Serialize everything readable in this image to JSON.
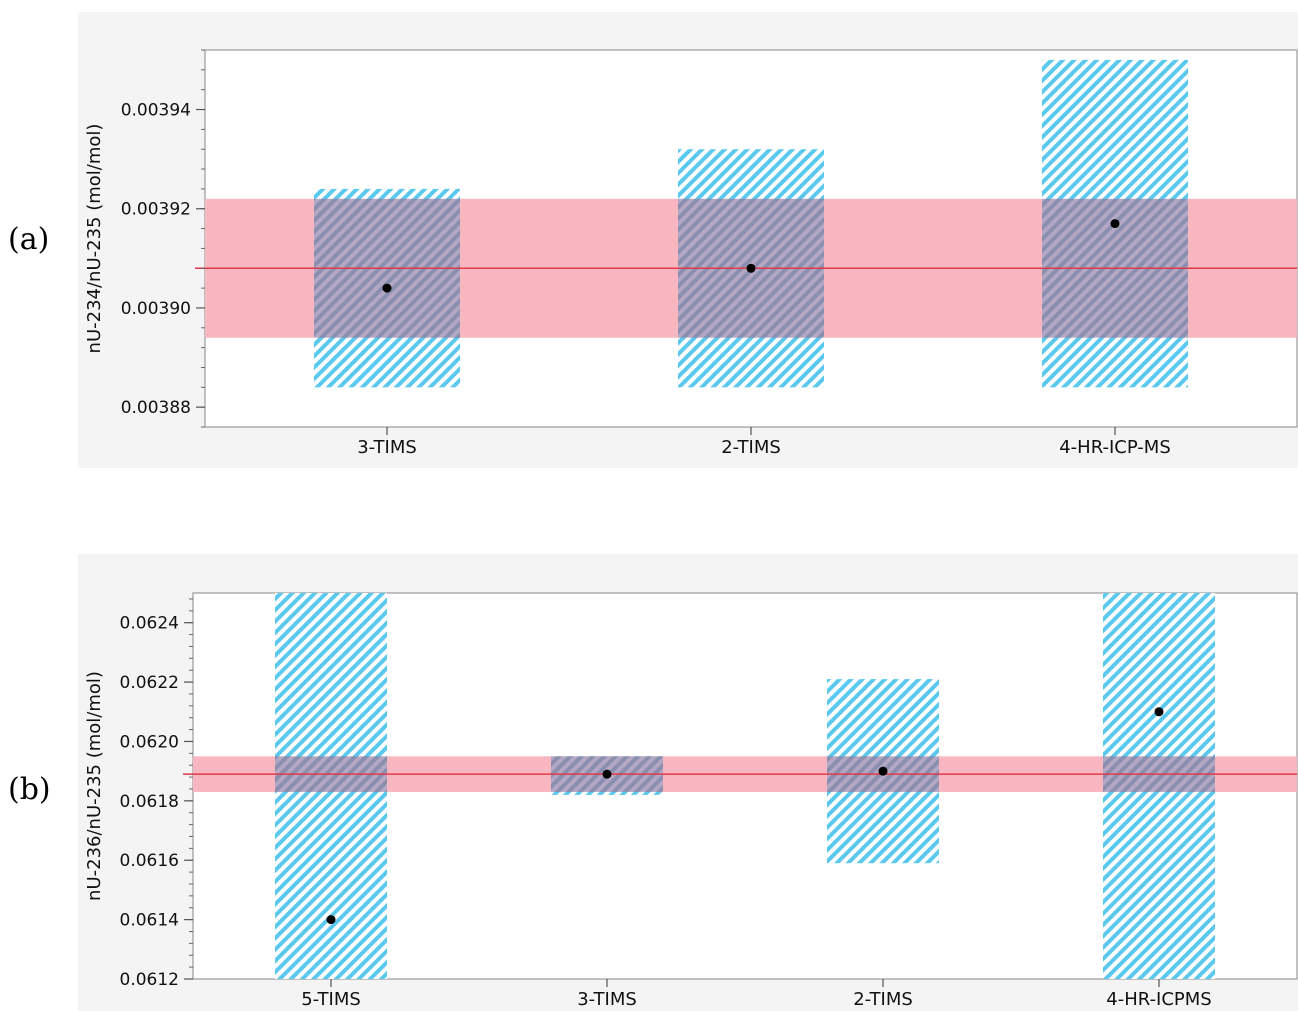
{
  "panel_labels": {
    "a": "(a)",
    "b": "(b)"
  },
  "chart_data": [
    {
      "id": "a",
      "type": "scatter",
      "ylabel": "nU-234/nU-235 (mol/mol)",
      "ylim": [
        0.003876,
        0.003952
      ],
      "yticks": [
        "0.00388",
        "0.00390",
        "0.00392",
        "0.00394"
      ],
      "ytick_values": [
        0.00388,
        0.0039,
        0.00392,
        0.00394
      ],
      "categories": [
        "3-TIMS",
        "2-TIMS",
        "4-HR-ICP-MS"
      ],
      "values": [
        0.003904,
        0.003908,
        0.003917
      ],
      "uncertainty_boxes": [
        [
          0.003884,
          0.003924
        ],
        [
          0.003884,
          0.003932
        ],
        [
          0.003884,
          0.00395
        ]
      ],
      "reference_value": 0.003908,
      "reference_band": [
        0.003894,
        0.003922
      ],
      "colors": {
        "box": "#5bc8ee",
        "band": "#f7b6c0",
        "line": "#e03a4a",
        "point": "#000000",
        "frame_bg": "#f4f4f4"
      },
      "grid": false
    },
    {
      "id": "b",
      "type": "scatter",
      "ylabel": "nU-236/nU-235 (mol/mol)",
      "ylim": [
        0.0612,
        0.0625
      ],
      "yticks": [
        "0.0612",
        "0.0614",
        "0.0616",
        "0.0618",
        "0.0620",
        "0.0622",
        "0.0624"
      ],
      "ytick_values": [
        0.0612,
        0.0614,
        0.0616,
        0.0618,
        0.062,
        0.0622,
        0.0624
      ],
      "categories": [
        "5-TIMS",
        "3-TIMS",
        "2-TIMS",
        "4-HR-ICPMS"
      ],
      "values": [
        0.0614,
        0.06189,
        0.0619,
        0.0621
      ],
      "uncertainty_boxes": [
        [
          0.0612,
          0.0625
        ],
        [
          0.06182,
          0.06195
        ],
        [
          0.06159,
          0.06221
        ],
        [
          0.0612,
          0.0625
        ]
      ],
      "reference_value": 0.06189,
      "reference_band": [
        0.06183,
        0.06195
      ],
      "colors": {
        "box": "#5bc8ee",
        "band": "#f7b6c0",
        "line": "#e03a4a",
        "point": "#000000",
        "frame_bg": "#f4f4f4"
      },
      "grid": false
    }
  ]
}
